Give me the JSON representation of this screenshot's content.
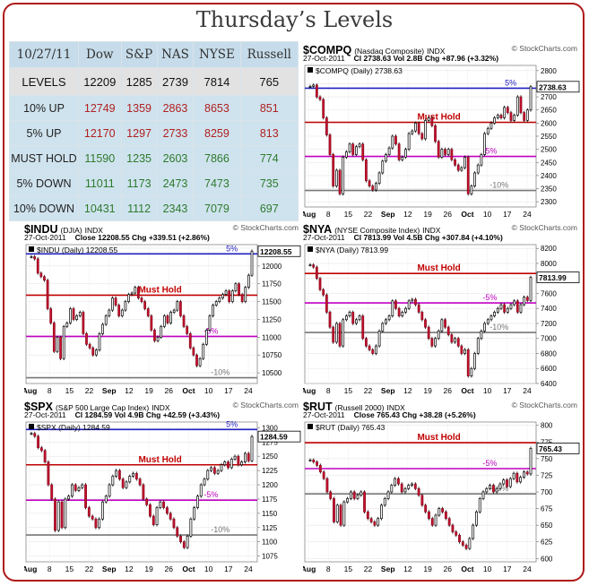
{
  "title": "Thursday’s Levels",
  "table": {
    "date": "10/27/11",
    "columns": [
      "Dow",
      "S&P",
      "NAS",
      "NYSE",
      "Russell"
    ],
    "rows": [
      {
        "label": "LEVELS",
        "values": [
          "12209",
          "1285",
          "2739",
          "7814",
          "765"
        ],
        "color": "#111111"
      },
      {
        "label": "10% UP",
        "values": [
          "12749",
          "1359",
          "2863",
          "8653",
          "851"
        ],
        "color": "#b02020"
      },
      {
        "label": "5% UP",
        "values": [
          "12170",
          "1297",
          "2733",
          "8259",
          "813"
        ],
        "color": "#b02020"
      },
      {
        "label": "MUST HOLD",
        "values": [
          "11590",
          "1235",
          "2603",
          "7866",
          "774"
        ],
        "color": "#2d7a2d"
      },
      {
        "label": "5% DOWN",
        "values": [
          "11011",
          "1173",
          "2473",
          "7473",
          "735"
        ],
        "color": "#2d7a2d"
      },
      {
        "label": "10% DOWN",
        "values": [
          "10431",
          "1112",
          "2343",
          "7079",
          "697"
        ],
        "color": "#2d7a2d"
      }
    ]
  },
  "charts": [
    {
      "id": "compq",
      "symbol": "$COMPQ",
      "name": "(Nasdaq Composite)",
      "type_tag": "INDX",
      "source": "© StockCharts.com",
      "date": "27-Oct-2011",
      "line2": "Cl 2738.63  Vol 2.8B  Chg +87.96 (+3.32%)",
      "legend": "$COMPQ (Daily) 2738.63",
      "last_label": "2738.63",
      "yticks": [
        "2800",
        "2750",
        "2700",
        "2650",
        "2600",
        "2550",
        "2500",
        "2450",
        "2400",
        "2350",
        "2300"
      ],
      "xticks": [
        "Aug",
        "8",
        "15",
        "22",
        "Sep",
        "12",
        "19",
        "26",
        "Oct",
        "10",
        "17",
        "24"
      ],
      "levels": [
        {
          "label": "5%",
          "color": "#2020c0"
        },
        {
          "label": "Must Hold",
          "color": "#c00000"
        },
        {
          "label": "-5%",
          "color": "#c000c0"
        },
        {
          "label": "-10%",
          "color": "#777777"
        }
      ]
    },
    {
      "id": "indu",
      "symbol": "$INDU",
      "name": "(DJIA)",
      "type_tag": "INDX",
      "source": "© StockCharts.com",
      "date": "27-Oct-2011",
      "line2": "Close 12208.55  Chg +339.51 (+2.86%)",
      "legend": "$INDU (Daily) 12208.55",
      "last_label": "12208.55",
      "yticks": [
        "12250",
        "12000",
        "11750",
        "11500",
        "11250",
        "11000",
        "10750",
        "10500"
      ],
      "xticks": [
        "Aug",
        "8",
        "15",
        "22",
        "Sep",
        "12",
        "19",
        "26",
        "Oct",
        "10",
        "17",
        "24"
      ],
      "levels": [
        {
          "label": "5%",
          "color": "#2020c0"
        },
        {
          "label": "Must Hold",
          "color": "#c00000"
        },
        {
          "label": "-5%",
          "color": "#c000c0"
        },
        {
          "label": "-10%",
          "color": "#777777"
        }
      ]
    },
    {
      "id": "nya",
      "symbol": "$NYA",
      "name": "(NYSE Composite Index)",
      "type_tag": "INDX",
      "source": "© StockCharts.com",
      "date": "27-Oct-2011",
      "line2": "Cl 7813.99  Vol 4.5B  Chg +307.84 (+4.10%)",
      "legend": "$NYA (Daily) 7813.99",
      "last_label": "7813.99",
      "yticks": [
        "8200",
        "8000",
        "7800",
        "7600",
        "7400",
        "7200",
        "7000",
        "6800",
        "6600",
        "6400"
      ],
      "xticks": [
        "Aug",
        "8",
        "15",
        "22",
        "Sep",
        "12",
        "19",
        "26",
        "Oct",
        "10",
        "17",
        "24"
      ],
      "levels": [
        {
          "label": "5%",
          "color": "#2020c0"
        },
        {
          "label": "Must Hold",
          "color": "#c00000"
        },
        {
          "label": "-5%",
          "color": "#c000c0"
        },
        {
          "label": "-10%",
          "color": "#777777"
        }
      ]
    },
    {
      "id": "spx",
      "symbol": "$SPX",
      "name": "(S&P 500 Large Cap Index)",
      "type_tag": "INDX",
      "source": "© StockCharts.com",
      "date": "27-Oct-2011",
      "line2": "Cl 1284.59  Vol 4.9B  Chg +42.59 (+3.43%)",
      "legend": "$SPX (Daily) 1284.59",
      "last_label": "1284.59",
      "yticks": [
        "1300",
        "1275",
        "1250",
        "1225",
        "1200",
        "1175",
        "1150",
        "1125",
        "1100",
        "1075"
      ],
      "xticks": [
        "Aug",
        "8",
        "15",
        "22",
        "Sep",
        "12",
        "19",
        "26",
        "Oct",
        "10",
        "17",
        "24"
      ],
      "levels": [
        {
          "label": "5%",
          "color": "#2020c0"
        },
        {
          "label": "Must Hold",
          "color": "#c00000"
        },
        {
          "label": "-5%",
          "color": "#c000c0"
        },
        {
          "label": "-10%",
          "color": "#777777"
        }
      ]
    },
    {
      "id": "rut",
      "symbol": "$RUT",
      "name": "(Russell 2000)",
      "type_tag": "INDX",
      "source": "© StockCharts.com",
      "date": "27-Oct-2011",
      "line2": "Close 765.43  Chg +38.28 (+5.26%)",
      "legend": "$RUT (Daily) 765.43",
      "last_label": "765.43",
      "yticks": [
        "800",
        "775",
        "750",
        "725",
        "700",
        "675",
        "650",
        "625",
        "600"
      ],
      "xticks": [
        "Aug",
        "8",
        "15",
        "22",
        "Sep",
        "12",
        "19",
        "26",
        "Oct",
        "10",
        "17",
        "24"
      ],
      "levels": [
        {
          "label": "5%",
          "color": "#2020c0"
        },
        {
          "label": "Must Hold",
          "color": "#c00000"
        },
        {
          "label": "-5%",
          "color": "#c000c0"
        },
        {
          "label": "-10%",
          "color": "#777777"
        }
      ]
    }
  ],
  "chart_data": [
    {
      "type": "candlestick",
      "title": "$COMPQ (Nasdaq Composite)",
      "ylim": [
        2280,
        2820
      ],
      "last": 2738.63,
      "levels": {
        "5%": 2733,
        "Must Hold": 2603,
        "-5%": 2473,
        "-10%": 2343
      },
      "closes": [
        2740,
        2745,
        2700,
        2690,
        2620,
        2555,
        2480,
        2360,
        2420,
        2330,
        2470,
        2490,
        2520,
        2480,
        2510,
        2520,
        2460,
        2380,
        2360,
        2345,
        2370,
        2410,
        2455,
        2480,
        2505,
        2550,
        2520,
        2460,
        2470,
        2500,
        2560,
        2570,
        2600,
        2560,
        2540,
        2610,
        2620,
        2590,
        2530,
        2470,
        2500,
        2480,
        2500,
        2460,
        2440,
        2420,
        2430,
        2470,
        2330,
        2360,
        2410,
        2440,
        2480,
        2560,
        2580,
        2600,
        2620,
        2630,
        2620,
        2660,
        2640,
        2610,
        2630,
        2700,
        2640,
        2610,
        2650,
        2738.63
      ]
    },
    {
      "type": "candlestick",
      "title": "$INDU (DJIA)",
      "ylim": [
        10350,
        12300
      ],
      "last": 12208.55,
      "levels": {
        "5%": 12170,
        "Must Hold": 11590,
        "-5%": 11011,
        "-10%": 10431
      },
      "closes": [
        12130,
        12100,
        11900,
        11850,
        11800,
        11400,
        11200,
        10800,
        11000,
        10700,
        11150,
        11200,
        11400,
        11250,
        11300,
        11350,
        11050,
        10900,
        10850,
        10750,
        10820,
        11050,
        11180,
        11300,
        11380,
        11550,
        11450,
        11300,
        11380,
        11500,
        11600,
        11620,
        11700,
        11550,
        11500,
        11400,
        11300,
        11100,
        10950,
        11000,
        11150,
        11300,
        11200,
        11350,
        11380,
        11500,
        11300,
        11150,
        11050,
        10850,
        10750,
        10600,
        10700,
        10900,
        11100,
        11300,
        11450,
        11500,
        11550,
        11600,
        11650,
        11500,
        11650,
        11750,
        11600,
        11500,
        11700,
        11870,
        12208.55
      ]
    },
    {
      "type": "candlestick",
      "title": "$NYA (NYSE Composite Index)",
      "ylim": [
        6400,
        8250
      ],
      "last": 7813.99,
      "levels": {
        "5%": 8259,
        "Must Hold": 7866,
        "-5%": 7473,
        "-10%": 7079
      },
      "closes": [
        7980,
        7950,
        7800,
        7650,
        7580,
        7350,
        7150,
        6950,
        7200,
        6900,
        7250,
        7300,
        7350,
        7200,
        7250,
        7300,
        7000,
        6900,
        6850,
        6800,
        6900,
        7100,
        7200,
        7250,
        7300,
        7500,
        7400,
        7300,
        7350,
        7400,
        7500,
        7520,
        7450,
        7350,
        7250,
        7150,
        7000,
        6900,
        7000,
        7100,
        7250,
        7150,
        7050,
        6950,
        7000,
        6900,
        6800,
        6850,
        6500,
        6600,
        6800,
        7000,
        7100,
        7200,
        7250,
        7300,
        7350,
        7400,
        7450,
        7350,
        7400,
        7450,
        7500,
        7350,
        7450,
        7550,
        7506,
        7813.99
      ]
    },
    {
      "type": "candlestick",
      "title": "$SPX (S&P 500 Large Cap Index)",
      "ylim": [
        1065,
        1310
      ],
      "last": 1284.59,
      "levels": {
        "5%": 1297,
        "Must Hold": 1235,
        "-5%": 1173,
        "-10%": 1112
      },
      "closes": [
        1290,
        1285,
        1265,
        1260,
        1240,
        1200,
        1175,
        1120,
        1170,
        1125,
        1175,
        1180,
        1200,
        1190,
        1195,
        1200,
        1160,
        1145,
        1140,
        1125,
        1140,
        1170,
        1180,
        1200,
        1215,
        1225,
        1210,
        1195,
        1205,
        1215,
        1220,
        1210,
        1200,
        1175,
        1165,
        1145,
        1130,
        1160,
        1170,
        1160,
        1150,
        1140,
        1125,
        1110,
        1100,
        1090,
        1110,
        1140,
        1160,
        1180,
        1200,
        1210,
        1225,
        1230,
        1220,
        1225,
        1235,
        1240,
        1230,
        1245,
        1250,
        1235,
        1240,
        1255,
        1242,
        1284.59
      ]
    },
    {
      "type": "candlestick",
      "title": "$RUT (Russell 2000)",
      "ylim": [
        595,
        805
      ],
      "last": 765.43,
      "levels": {
        "5%": 813,
        "Must Hold": 774,
        "-5%": 735,
        "-10%": 697
      },
      "closes": [
        748,
        745,
        740,
        730,
        720,
        700,
        690,
        655,
        680,
        650,
        685,
        690,
        700,
        690,
        695,
        700,
        670,
        660,
        655,
        650,
        660,
        680,
        690,
        700,
        710,
        720,
        712,
        700,
        705,
        710,
        712,
        705,
        695,
        680,
        670,
        660,
        650,
        665,
        675,
        670,
        660,
        650,
        640,
        635,
        625,
        620,
        615,
        630,
        650,
        670,
        690,
        700,
        705,
        710,
        700,
        705,
        712,
        718,
        708,
        720,
        728,
        715,
        722,
        730,
        727,
        765.43
      ]
    }
  ]
}
